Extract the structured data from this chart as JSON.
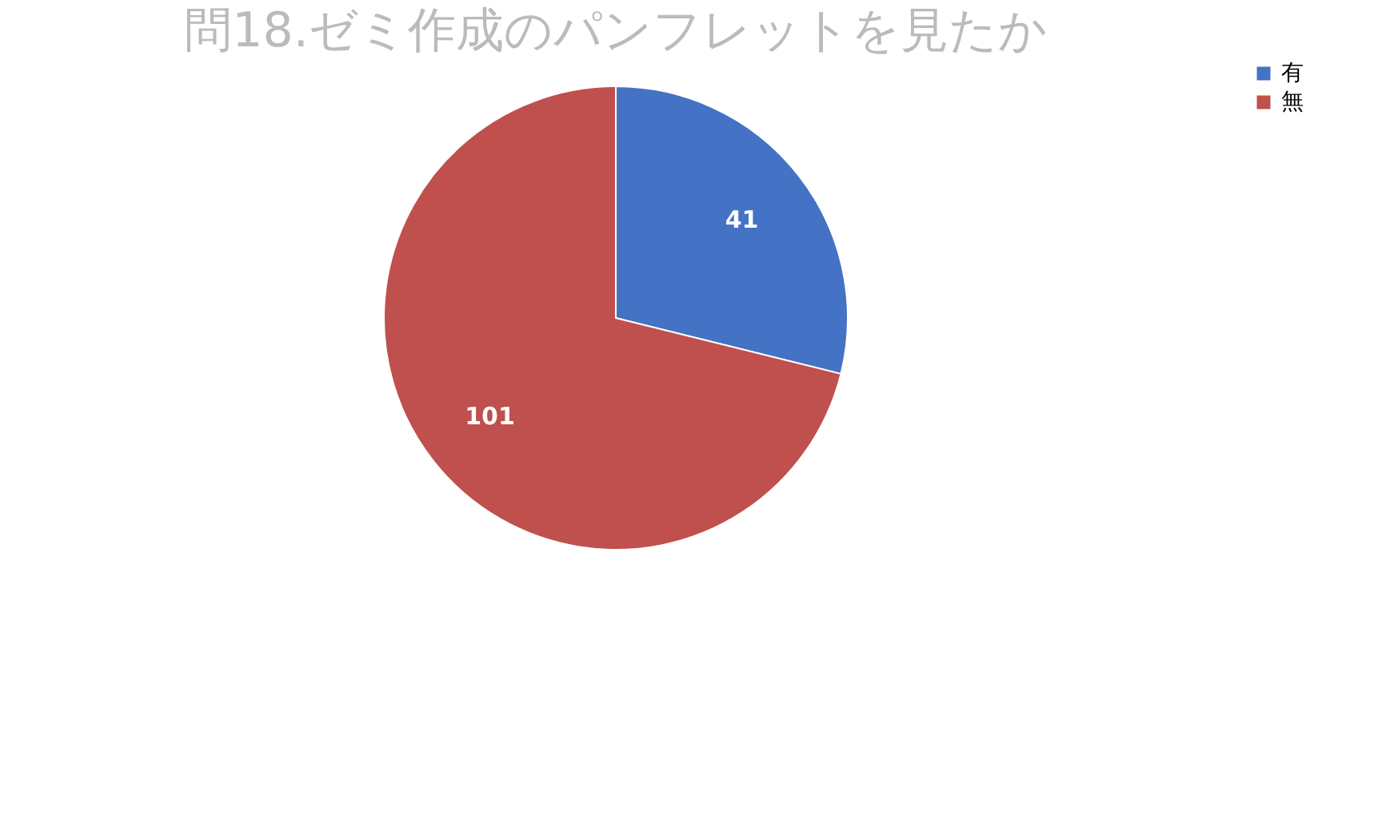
{
  "chart_data": {
    "type": "pie",
    "title": "問18.ゼミ作成のパンフレットを見たか",
    "categories": [
      "有",
      "無"
    ],
    "values": [
      41,
      101
    ],
    "colors": [
      "#4472c4",
      "#c0504d"
    ],
    "data_labels": true,
    "legend": "right"
  }
}
